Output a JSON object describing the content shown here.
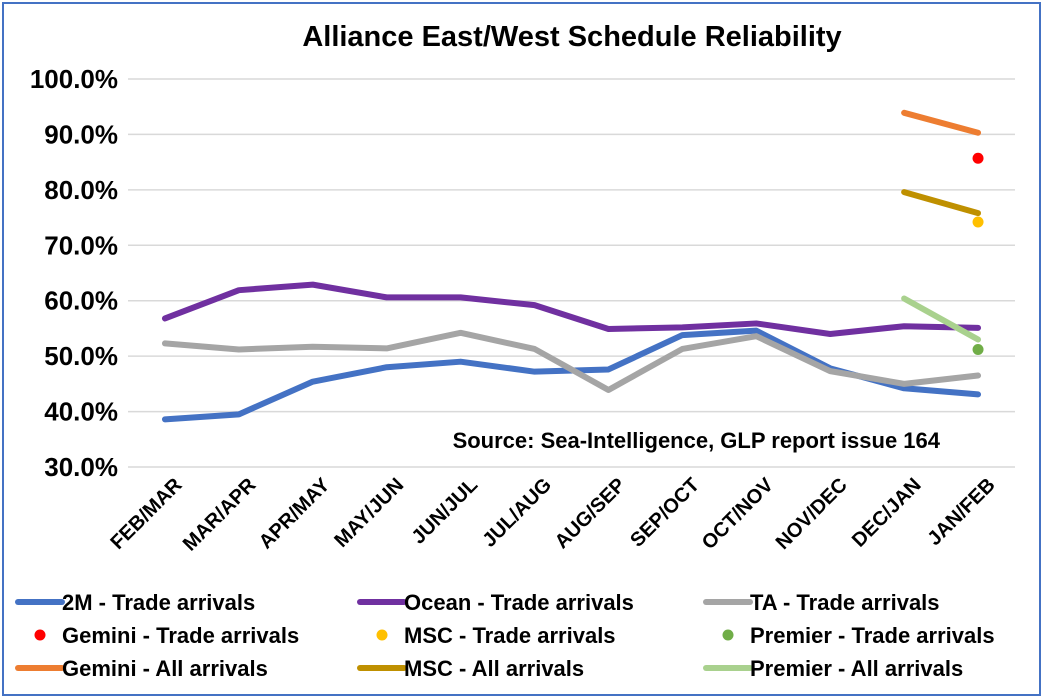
{
  "chart_data": {
    "type": "line",
    "title": "Alliance East/West Schedule Reliability",
    "annotation": "Source: Sea-Intelligence, GLP report issue 164",
    "xlabel": "",
    "ylabel": "",
    "ylim": [
      30,
      100
    ],
    "yticks": [
      "30.0%",
      "40.0%",
      "50.0%",
      "60.0%",
      "70.0%",
      "80.0%",
      "90.0%",
      "100.0%"
    ],
    "grid": true,
    "legend_position": "bottom",
    "categories": [
      "FEB/MAR",
      "MAR/APR",
      "APR/MAY",
      "MAY/JUN",
      "JUN/JUL",
      "JUL/AUG",
      "AUG/SEP",
      "SEP/OCT",
      "OCT/NOV",
      "NOV/DEC",
      "DEC/JAN",
      "JAN/FEB"
    ],
    "series": [
      {
        "name": "2M - Trade arrivals",
        "kind": "line",
        "color": "#4472c4",
        "values": [
          38.6,
          39.5,
          45.4,
          48.0,
          49.0,
          47.2,
          47.6,
          53.8,
          54.6,
          47.8,
          44.2,
          43.1
        ]
      },
      {
        "name": "Ocean - Trade arrivals",
        "kind": "line",
        "color": "#7030a0",
        "values": [
          56.8,
          61.9,
          62.9,
          60.6,
          60.6,
          59.2,
          54.9,
          55.2,
          55.9,
          54.0,
          55.4,
          55.1
        ]
      },
      {
        "name": "TA - Trade arrivals",
        "kind": "line",
        "color": "#a5a5a5",
        "values": [
          52.3,
          51.2,
          51.7,
          51.4,
          54.2,
          51.3,
          43.9,
          51.3,
          53.6,
          47.3,
          45.0,
          46.5
        ]
      },
      {
        "name": "Gemini - Trade arrivals",
        "kind": "marker",
        "color": "#ff0000",
        "values": [
          null,
          null,
          null,
          null,
          null,
          null,
          null,
          null,
          null,
          null,
          null,
          85.7
        ]
      },
      {
        "name": "MSC - Trade arrivals",
        "kind": "marker",
        "color": "#ffc000",
        "values": [
          null,
          null,
          null,
          null,
          null,
          null,
          null,
          null,
          null,
          null,
          null,
          74.2
        ]
      },
      {
        "name": "Premier - Trade arrivals",
        "kind": "marker",
        "color": "#70ad47",
        "values": [
          null,
          null,
          null,
          null,
          null,
          null,
          null,
          null,
          null,
          null,
          null,
          51.2
        ]
      },
      {
        "name": "Gemini - All arrivals",
        "kind": "line",
        "color": "#ed7d31",
        "values": [
          null,
          null,
          null,
          null,
          null,
          null,
          null,
          null,
          null,
          null,
          93.9,
          90.3
        ]
      },
      {
        "name": "MSC - All arrivals",
        "kind": "line",
        "color": "#bf9000",
        "values": [
          null,
          null,
          null,
          null,
          null,
          null,
          null,
          null,
          null,
          null,
          79.6,
          75.8
        ]
      },
      {
        "name": "Premier  - All arrivals",
        "kind": "line",
        "color": "#a9d18e",
        "values": [
          null,
          null,
          null,
          null,
          null,
          null,
          null,
          null,
          null,
          null,
          60.4,
          53.0
        ]
      }
    ]
  }
}
